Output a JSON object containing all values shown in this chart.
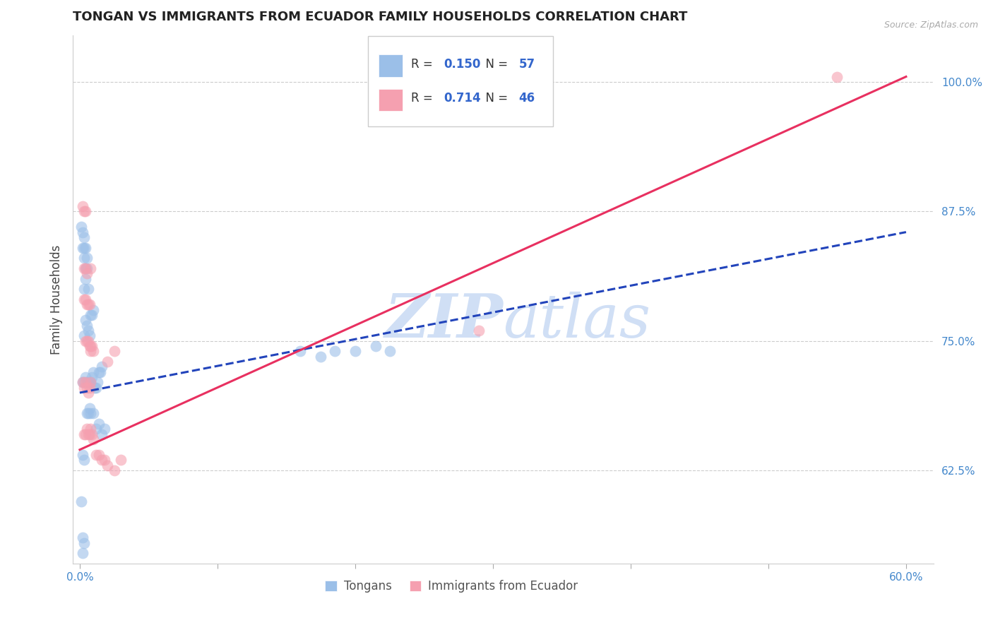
{
  "title": "TONGAN VS IMMIGRANTS FROM ECUADOR FAMILY HOUSEHOLDS CORRELATION CHART",
  "source": "Source: ZipAtlas.com",
  "ylabel": "Family Households",
  "xlim": [
    -0.005,
    0.62
  ],
  "ylim": [
    0.535,
    1.045
  ],
  "yticks": [
    0.625,
    0.75,
    0.875,
    1.0
  ],
  "xticks": [
    0.0,
    0.1,
    0.2,
    0.3,
    0.4,
    0.5,
    0.6
  ],
  "ytick_labels": [
    "62.5%",
    "75.0%",
    "87.5%",
    "100.0%"
  ],
  "xtick_label_left": "0.0%",
  "xtick_label_right": "60.0%",
  "blue_color": "#9bbfe8",
  "pink_color": "#f5a0b0",
  "blue_line_color": "#2244bb",
  "pink_line_color": "#e83060",
  "legend_r_blue": "0.150",
  "legend_n_blue": "57",
  "legend_r_pink": "0.714",
  "legend_n_pink": "46",
  "legend_text_color": "#3366cc",
  "watermark_color": "#d0dff5",
  "background_color": "#ffffff",
  "grid_color": "#cccccc",
  "tick_color": "#4488cc",
  "title_fontsize": 13,
  "axis_label_fontsize": 12,
  "tick_fontsize": 11,
  "blue_x": [
    0.002,
    0.003,
    0.004,
    0.005,
    0.006,
    0.007,
    0.008,
    0.009,
    0.01,
    0.011,
    0.012,
    0.013,
    0.014,
    0.015,
    0.016,
    0.003,
    0.004,
    0.005,
    0.006,
    0.007,
    0.008,
    0.009,
    0.01,
    0.003,
    0.004,
    0.005,
    0.006,
    0.003,
    0.004,
    0.005,
    0.002,
    0.003,
    0.001,
    0.002,
    0.003,
    0.004,
    0.005,
    0.006,
    0.007,
    0.008,
    0.01,
    0.012,
    0.014,
    0.016,
    0.018,
    0.002,
    0.003,
    0.001,
    0.002,
    0.003,
    0.002,
    0.16,
    0.175,
    0.185,
    0.2,
    0.215,
    0.225
  ],
  "blue_y": [
    0.71,
    0.71,
    0.715,
    0.71,
    0.71,
    0.71,
    0.71,
    0.715,
    0.72,
    0.705,
    0.705,
    0.71,
    0.72,
    0.72,
    0.725,
    0.755,
    0.77,
    0.765,
    0.76,
    0.755,
    0.775,
    0.775,
    0.78,
    0.8,
    0.81,
    0.82,
    0.8,
    0.84,
    0.84,
    0.83,
    0.855,
    0.85,
    0.86,
    0.84,
    0.83,
    0.82,
    0.68,
    0.68,
    0.685,
    0.68,
    0.68,
    0.665,
    0.67,
    0.66,
    0.665,
    0.64,
    0.635,
    0.595,
    0.56,
    0.555,
    0.545,
    0.74,
    0.735,
    0.74,
    0.74,
    0.745,
    0.74
  ],
  "pink_x": [
    0.002,
    0.003,
    0.004,
    0.005,
    0.006,
    0.007,
    0.008,
    0.004,
    0.005,
    0.006,
    0.007,
    0.008,
    0.009,
    0.003,
    0.004,
    0.005,
    0.006,
    0.007,
    0.008,
    0.003,
    0.004,
    0.005,
    0.002,
    0.003,
    0.004,
    0.003,
    0.004,
    0.005,
    0.006,
    0.007,
    0.008,
    0.009,
    0.01,
    0.012,
    0.014,
    0.016,
    0.018,
    0.02,
    0.025,
    0.03,
    0.008,
    0.01,
    0.02,
    0.025,
    0.29,
    0.55
  ],
  "pink_y": [
    0.71,
    0.705,
    0.71,
    0.705,
    0.7,
    0.705,
    0.71,
    0.75,
    0.75,
    0.75,
    0.745,
    0.745,
    0.745,
    0.79,
    0.79,
    0.785,
    0.785,
    0.785,
    0.82,
    0.82,
    0.82,
    0.815,
    0.88,
    0.875,
    0.875,
    0.66,
    0.66,
    0.665,
    0.66,
    0.66,
    0.665,
    0.66,
    0.655,
    0.64,
    0.64,
    0.635,
    0.635,
    0.63,
    0.625,
    0.635,
    0.74,
    0.74,
    0.73,
    0.74,
    0.76,
    1.005
  ],
  "blue_trend_x": [
    0.0,
    0.6
  ],
  "blue_trend_y": [
    0.7,
    0.855
  ],
  "pink_trend_x": [
    0.0,
    0.6
  ],
  "pink_trend_y": [
    0.645,
    1.005
  ]
}
